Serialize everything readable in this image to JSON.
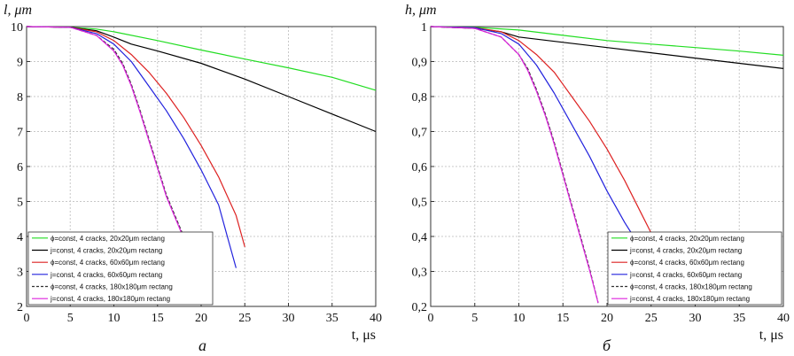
{
  "chart_data": [
    {
      "type": "line",
      "panel_label": "a",
      "ylabel": "l, μm",
      "xlabel": "t, μs",
      "xlim": [
        0,
        40
      ],
      "ylim": [
        2,
        10
      ],
      "xticks": [
        0,
        5,
        10,
        15,
        20,
        25,
        30,
        35,
        40
      ],
      "xtick_labels": [
        "0",
        "5",
        "10",
        "15",
        "20",
        "25",
        "30",
        "35",
        "40"
      ],
      "yticks": [
        2,
        3,
        4,
        5,
        6,
        7,
        8,
        9,
        10
      ],
      "ytick_labels": [
        "2",
        "3",
        "4",
        "5",
        "6",
        "7",
        "8",
        "9",
        "10"
      ],
      "grid": true,
      "legend_position": "bottom-left",
      "series": [
        {
          "name": "ϕ=const, 4 cracks, 20x20μm rectang",
          "color": "#22dd22",
          "dash": "solid",
          "x": [
            0,
            5,
            8,
            10,
            15,
            20,
            25,
            30,
            35,
            40
          ],
          "y": [
            10,
            9.98,
            9.93,
            9.85,
            9.6,
            9.33,
            9.07,
            8.82,
            8.55,
            8.18
          ]
        },
        {
          "name": "j=const, 4 cracks, 20x20μm rectang",
          "color": "#000000",
          "dash": "solid",
          "x": [
            0,
            5,
            8,
            10,
            12,
            15,
            20,
            25,
            30,
            35,
            40
          ],
          "y": [
            10,
            9.98,
            9.88,
            9.7,
            9.5,
            9.3,
            8.95,
            8.5,
            8.0,
            7.5,
            7.0
          ]
        },
        {
          "name": "ϕ=const, 4 cracks, 60x60μm rectang",
          "color": "#dd2222",
          "dash": "solid",
          "x": [
            0,
            5,
            8,
            10,
            12,
            14,
            16,
            18,
            20,
            22,
            24,
            25
          ],
          "y": [
            10,
            9.98,
            9.85,
            9.6,
            9.2,
            8.7,
            8.1,
            7.4,
            6.6,
            5.7,
            4.6,
            3.7
          ]
        },
        {
          "name": "j=const, 4 cracks, 60x60μm rectang",
          "color": "#2222dd",
          "dash": "solid",
          "x": [
            0,
            5,
            8,
            10,
            12,
            14,
            16,
            18,
            20,
            22,
            23,
            24
          ],
          "y": [
            10,
            9.98,
            9.8,
            9.5,
            9.0,
            8.3,
            7.6,
            6.8,
            5.9,
            4.9,
            4.0,
            3.1
          ]
        },
        {
          "name": "ϕ=const, 4 cracks, 180x180μm rectang",
          "color": "#333333",
          "dash": "dashed",
          "x": [
            0,
            5,
            8,
            10,
            11,
            12,
            13,
            14,
            15,
            16,
            17,
            18
          ],
          "y": [
            10,
            9.98,
            9.75,
            9.35,
            8.95,
            8.35,
            7.6,
            6.8,
            6.0,
            5.2,
            4.6,
            4.0
          ]
        },
        {
          "name": "j=const, 4 cracks, 180x180μm rectang",
          "color": "#dd22dd",
          "dash": "solid",
          "x": [
            0,
            5,
            8,
            10,
            11,
            12,
            13,
            14,
            15,
            16,
            17,
            18
          ],
          "y": [
            10,
            9.98,
            9.75,
            9.3,
            8.9,
            8.3,
            7.55,
            6.75,
            5.95,
            5.15,
            4.55,
            3.95
          ]
        }
      ]
    },
    {
      "type": "line",
      "panel_label": "б",
      "ylabel": "h, μm",
      "xlabel": "t, μs",
      "xlim": [
        0,
        40
      ],
      "ylim": [
        0.2,
        1
      ],
      "xticks": [
        0,
        5,
        10,
        15,
        20,
        25,
        30,
        35,
        40
      ],
      "xtick_labels": [
        "0",
        "5",
        "10",
        "15",
        "20",
        "25",
        "30",
        "35",
        "40"
      ],
      "yticks": [
        0.2,
        0.3,
        0.4,
        0.5,
        0.6,
        0.7,
        0.8,
        0.9,
        1
      ],
      "ytick_labels": [
        "0,2",
        "0,3",
        "0,4",
        "0,5",
        "0,6",
        "0,7",
        "0,8",
        "0,9",
        "1"
      ],
      "grid": true,
      "legend_position": "bottom-right",
      "series": [
        {
          "name": "ϕ=const, 4 cracks, 20x20μm rectang",
          "color": "#22dd22",
          "dash": "solid",
          "x": [
            0,
            5,
            10,
            15,
            20,
            25,
            30,
            35,
            40
          ],
          "y": [
            1,
            0.998,
            0.99,
            0.975,
            0.96,
            0.95,
            0.94,
            0.93,
            0.918
          ]
        },
        {
          "name": "j=const, 4 cracks, 20x20μm rectang",
          "color": "#000000",
          "dash": "solid",
          "x": [
            0,
            5,
            8,
            10,
            15,
            20,
            25,
            30,
            35,
            40
          ],
          "y": [
            1,
            0.995,
            0.985,
            0.97,
            0.955,
            0.94,
            0.925,
            0.91,
            0.895,
            0.88
          ]
        },
        {
          "name": "ϕ=const, 4 cracks, 60x60μm rectang",
          "color": "#dd2222",
          "dash": "solid",
          "x": [
            0,
            5,
            8,
            10,
            12,
            14,
            16,
            18,
            20,
            22,
            24,
            25
          ],
          "y": [
            1,
            0.997,
            0.985,
            0.96,
            0.92,
            0.87,
            0.8,
            0.73,
            0.65,
            0.56,
            0.46,
            0.41
          ]
        },
        {
          "name": "j=const, 4 cracks, 60x60μm rectang",
          "color": "#2222dd",
          "dash": "solid",
          "x": [
            0,
            5,
            8,
            10,
            12,
            14,
            16,
            18,
            20,
            22,
            23
          ],
          "y": [
            1,
            0.997,
            0.98,
            0.95,
            0.89,
            0.81,
            0.72,
            0.63,
            0.53,
            0.44,
            0.4
          ]
        },
        {
          "name": "ϕ=const, 4 cracks, 180x180μm rectang",
          "color": "#333333",
          "dash": "dashed",
          "x": [
            0,
            5,
            8,
            10,
            11,
            12,
            13,
            14,
            15,
            16,
            17,
            18,
            19
          ],
          "y": [
            1,
            0.995,
            0.97,
            0.92,
            0.88,
            0.82,
            0.75,
            0.67,
            0.58,
            0.49,
            0.4,
            0.31,
            0.21
          ]
        },
        {
          "name": "j=const, 4 cracks, 180x180μm rectang",
          "color": "#dd22dd",
          "dash": "solid",
          "x": [
            0,
            5,
            8,
            10,
            11,
            12,
            13,
            14,
            15,
            16,
            17,
            18,
            19
          ],
          "y": [
            1,
            0.995,
            0.97,
            0.92,
            0.875,
            0.815,
            0.745,
            0.665,
            0.575,
            0.485,
            0.395,
            0.305,
            0.21
          ]
        }
      ]
    }
  ]
}
